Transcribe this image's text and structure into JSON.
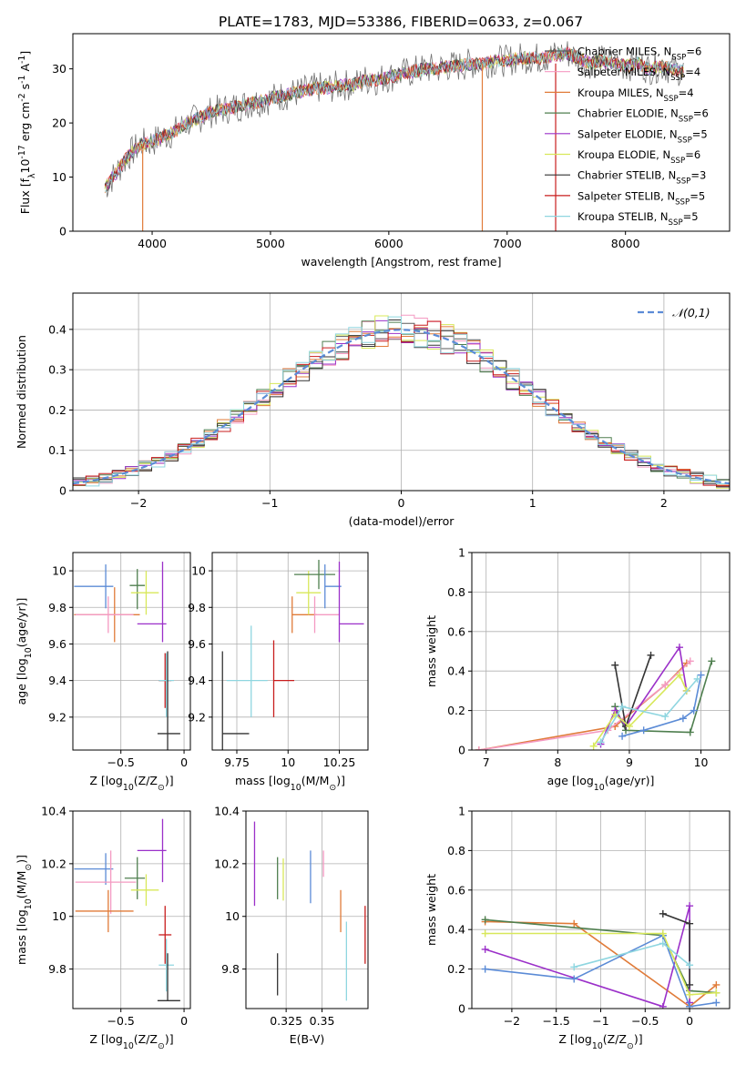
{
  "title": "PLATE=1783, MJD=53386, FIBERID=0633, z=0.067",
  "legend_entries": [
    {
      "label": "Chabrier MILES, N$_{SSP}$=6",
      "color": "#5b5b5b"
    },
    {
      "label": "Salpeter MILES, N$_{SSP}$=4",
      "color": "#f49ac2"
    },
    {
      "label": "Kroupa MILES, N$_{SSP}$=4",
      "color": "#e07b39"
    },
    {
      "label": "Chabrier ELODIE, N$_{SSP}$=6",
      "color": "#4f7f4f"
    },
    {
      "label": "Salpeter ELODIE, N$_{SSP}$=5",
      "color": "#9b30c9"
    },
    {
      "label": "Kroupa ELODIE, N$_{SSP}$=6",
      "color": "#d8e85a"
    },
    {
      "label": "Chabrier STELIB, N$_{SSP}$=3",
      "color": "#333333"
    },
    {
      "label": "Salpeter STELIB, N$_{SSP}$=5",
      "color": "#c81d1d"
    },
    {
      "label": "Kroupa STELIB, N$_{SSP}$=5",
      "color": "#8fd6e0"
    }
  ],
  "chart_data": [
    {
      "id": "spectrum",
      "type": "line",
      "xlabel": "wavelength [Angstrom, rest frame]",
      "ylabel": "Flux [f$_\\lambda$10$^{-17}$ erg cm$^{-2}$ s$^{-1}$ A$^{-1}$]",
      "xlim": [
        3330,
        8880
      ],
      "ylim": [
        0,
        36.5
      ],
      "xticks": [
        4000,
        5000,
        6000,
        7000,
        8000
      ],
      "yticks": [
        0,
        10,
        20,
        30
      ],
      "grid": false,
      "legend": "right",
      "series": [
        {
          "name": "spectrum",
          "x": [
            3600,
            3700,
            3800,
            3900,
            4000,
            4100,
            4200,
            4300,
            4400,
            4500,
            4600,
            4700,
            4800,
            4900,
            5000,
            5100,
            5200,
            5300,
            5400,
            5500,
            5600,
            5700,
            5800,
            5900,
            6000,
            6100,
            6200,
            6300,
            6400,
            6500,
            6600,
            6700,
            6800,
            6900,
            7000,
            7100,
            7200,
            7300,
            7400,
            7500,
            7600,
            7700,
            7800,
            7900,
            8000,
            8100,
            8200,
            8300,
            8400,
            8500
          ],
          "y": [
            8,
            11,
            14,
            16,
            16.5,
            17.5,
            18.5,
            20,
            21,
            22,
            22.5,
            23,
            23.5,
            24,
            24.5,
            25,
            25.5,
            26,
            26.5,
            26.5,
            27,
            27,
            28,
            28,
            28.5,
            29,
            29.5,
            30,
            30,
            30.5,
            30.5,
            31,
            31,
            31.5,
            31.5,
            32,
            32,
            32,
            32.5,
            33,
            32,
            31,
            31.5,
            31,
            30.5,
            31,
            30,
            30.5,
            30,
            29.5
          ]
        }
      ]
    },
    {
      "id": "residuals",
      "type": "bar",
      "xlabel": "(data-model)/error",
      "ylabel": "Normed distribution",
      "xlim": [
        -2.5,
        2.5
      ],
      "ylim": [
        0,
        0.49
      ],
      "xticks": [
        -2,
        -1,
        0,
        1,
        2
      ],
      "yticks": [
        0,
        0.1,
        0.2,
        0.3,
        0.4
      ],
      "grid": true,
      "legend": "top-right",
      "series": [
        {
          "name": "$\\mathcal{N}(0,1)$",
          "type": "line",
          "style": "dashed"
        }
      ]
    },
    {
      "id": "age_vs_Z",
      "type": "scatter",
      "xlabel": "Z [log$_{10}$(Z/Z$_\\odot$)]",
      "ylabel": "age  [log$_{10}$(age/yr)]",
      "xlim": [
        -0.88,
        0.05
      ],
      "ylim": [
        9.02,
        10.1
      ],
      "xticks": [
        -0.5,
        0.0
      ],
      "yticks": [
        9.2,
        9.4,
        9.6,
        9.8,
        10.0
      ],
      "grid": true,
      "points": [
        {
          "x": -0.62,
          "y": 9.915,
          "xerr": [
            0.25,
            0.06
          ],
          "yerr": [
            0.12,
            0.12
          ],
          "color": "#5b8bd6"
        },
        {
          "x": -0.55,
          "y": 9.76,
          "xerr": [
            0.32,
            0.2
          ],
          "yerr": [
            0.15,
            0.15
          ],
          "color": "#e07b39"
        },
        {
          "x": -0.6,
          "y": 9.76,
          "xerr": [
            0.26,
            0.2
          ],
          "yerr": [
            0.1,
            0.1
          ],
          "color": "#f49ac2"
        },
        {
          "x": -0.37,
          "y": 9.92,
          "xerr": [
            0.06,
            0.06
          ],
          "yerr": [
            0.13,
            0.09
          ],
          "color": "#4f7f4f"
        },
        {
          "x": -0.3,
          "y": 9.88,
          "xerr": [
            0.12,
            0.1
          ],
          "yerr": [
            0.12,
            0.12
          ],
          "color": "#d8e85a"
        },
        {
          "x": -0.17,
          "y": 9.71,
          "xerr": [
            0.2,
            0.03
          ],
          "yerr": [
            0.1,
            0.34
          ],
          "color": "#9b30c9"
        },
        {
          "x": -0.15,
          "y": 9.4,
          "xerr": [
            0.05,
            0.05
          ],
          "yerr": [
            0.15,
            0.15
          ],
          "color": "#c81d1d"
        },
        {
          "x": -0.14,
          "y": 9.4,
          "xerr": [
            0.06,
            0.06
          ],
          "yerr": [
            0.2,
            0.15
          ],
          "color": "#8fd6e0"
        },
        {
          "x": -0.13,
          "y": 9.11,
          "xerr": [
            0.08,
            0.1
          ],
          "yerr": [
            0.09,
            0.45
          ],
          "color": "#333333"
        }
      ]
    },
    {
      "id": "age_vs_mass",
      "type": "scatter",
      "xlabel": "mass [log$_{10}$(M/M$_\\odot$)]",
      "ylabel": "",
      "xlim": [
        9.63,
        10.39
      ],
      "ylim": [
        9.02,
        10.1
      ],
      "xticks": [
        9.75,
        10.0,
        10.25
      ],
      "yticks": [
        9.2,
        9.4,
        9.6,
        9.8,
        10.0
      ],
      "grid": true,
      "points": [
        {
          "x": 9.68,
          "y": 9.11,
          "xerr": [
            0.0,
            0.13
          ],
          "yerr": [
            0.09,
            0.45
          ],
          "color": "#333333"
        },
        {
          "x": 9.82,
          "y": 9.4,
          "xerr": [
            0.12,
            0.08
          ],
          "yerr": [
            0.2,
            0.3
          ],
          "color": "#8fd6e0"
        },
        {
          "x": 9.93,
          "y": 9.4,
          "xerr": [
            0.0,
            0.1
          ],
          "yerr": [
            0.2,
            0.22
          ],
          "color": "#c81d1d"
        },
        {
          "x": 10.02,
          "y": 9.76,
          "xerr": [
            0.0,
            0.12
          ],
          "yerr": [
            0.1,
            0.1
          ],
          "color": "#e07b39"
        },
        {
          "x": 10.13,
          "y": 9.76,
          "xerr": [
            0.0,
            0.12
          ],
          "yerr": [
            0.1,
            0.1
          ],
          "color": "#f49ac2"
        },
        {
          "x": 10.1,
          "y": 9.88,
          "xerr": [
            0.06,
            0.06
          ],
          "yerr": [
            0.12,
            0.12
          ],
          "color": "#d8e85a"
        },
        {
          "x": 10.15,
          "y": 9.98,
          "xerr": [
            0.12,
            0.08
          ],
          "yerr": [
            0.08,
            0.08
          ],
          "color": "#4f7f4f"
        },
        {
          "x": 10.18,
          "y": 9.915,
          "xerr": [
            0.0,
            0.08
          ],
          "yerr": [
            0.12,
            0.12
          ],
          "color": "#5b8bd6"
        },
        {
          "x": 10.25,
          "y": 9.71,
          "xerr": [
            0.0,
            0.12
          ],
          "yerr": [
            0.1,
            0.34
          ],
          "color": "#9b30c9"
        }
      ]
    },
    {
      "id": "mass_weight_vs_age",
      "type": "line",
      "xlabel": "age  [log$_{10}$(age/yr)]",
      "ylabel": "mass weight",
      "xlim": [
        6.8,
        10.4
      ],
      "ylim": [
        0,
        1.0
      ],
      "xticks": [
        7,
        8,
        9,
        10
      ],
      "yticks": [
        0.0,
        0.2,
        0.4,
        0.6,
        0.8,
        1.0
      ],
      "grid": true,
      "series": [
        {
          "color": "#e07b39",
          "x": [
            6.9,
            8.8,
            9.5,
            9.8
          ],
          "y": [
            0.0,
            0.12,
            0.33,
            0.44
          ]
        },
        {
          "color": "#f49ac2",
          "x": [
            6.9,
            8.7,
            9.5,
            9.85
          ],
          "y": [
            0.0,
            0.1,
            0.33,
            0.45
          ]
        },
        {
          "color": "#4f7f4f",
          "x": [
            8.8,
            8.95,
            9.85,
            10.15
          ],
          "y": [
            0.22,
            0.1,
            0.09,
            0.45
          ]
        },
        {
          "color": "#9b30c9",
          "x": [
            8.6,
            8.8,
            8.95,
            9.7,
            9.8
          ],
          "y": [
            0.03,
            0.2,
            0.12,
            0.52,
            0.3
          ]
        },
        {
          "color": "#5b8bd6",
          "x": [
            8.9,
            9.2,
            9.75,
            9.9,
            10.0
          ],
          "y": [
            0.07,
            0.1,
            0.16,
            0.2,
            0.38
          ]
        },
        {
          "color": "#333333",
          "x": [
            8.8,
            8.95,
            9.3
          ],
          "y": [
            0.43,
            0.12,
            0.48
          ]
        },
        {
          "color": "#d8e85a",
          "x": [
            8.5,
            8.8,
            9.0,
            9.7,
            9.8
          ],
          "y": [
            0.02,
            0.18,
            0.12,
            0.38,
            0.3
          ]
        },
        {
          "color": "#8fd6e0",
          "x": [
            8.6,
            8.9,
            9.5,
            9.95
          ],
          "y": [
            0.04,
            0.22,
            0.17,
            0.36
          ]
        }
      ]
    },
    {
      "id": "mass_vs_Z",
      "type": "scatter",
      "xlabel": "Z [log$_{10}$(Z/Z$_\\odot$)]",
      "ylabel": "mass [log$_{10}$(M/M$_\\odot$)]",
      "xlim": [
        -0.88,
        0.05
      ],
      "ylim": [
        9.65,
        10.4
      ],
      "xticks": [
        -0.5,
        0.0
      ],
      "yticks": [
        9.8,
        10.0,
        10.2,
        10.4
      ],
      "grid": true,
      "points": [
        {
          "x": -0.62,
          "y": 10.18,
          "xerr": [
            0.25,
            0.06
          ],
          "yerr": [
            0.06,
            0.06
          ],
          "color": "#5b8bd6"
        },
        {
          "x": -0.58,
          "y": 10.13,
          "xerr": [
            0.28,
            0.2
          ],
          "yerr": [
            0.12,
            0.12
          ],
          "color": "#f49ac2"
        },
        {
          "x": -0.6,
          "y": 10.02,
          "xerr": [
            0.26,
            0.2
          ],
          "yerr": [
            0.08,
            0.08
          ],
          "color": "#e07b39"
        },
        {
          "x": -0.37,
          "y": 10.145,
          "xerr": [
            0.1,
            0.06
          ],
          "yerr": [
            0.08,
            0.08
          ],
          "color": "#4f7f4f"
        },
        {
          "x": -0.3,
          "y": 10.1,
          "xerr": [
            0.12,
            0.1
          ],
          "yerr": [
            0.06,
            0.06
          ],
          "color": "#d8e85a"
        },
        {
          "x": -0.17,
          "y": 10.25,
          "xerr": [
            0.2,
            0.03
          ],
          "yerr": [
            0.12,
            0.12
          ],
          "color": "#9b30c9"
        },
        {
          "x": -0.15,
          "y": 9.93,
          "xerr": [
            0.05,
            0.05
          ],
          "yerr": [
            0.11,
            0.11
          ],
          "color": "#c81d1d"
        },
        {
          "x": -0.14,
          "y": 9.815,
          "xerr": [
            0.06,
            0.06
          ],
          "yerr": [
            0.1,
            0.1
          ],
          "color": "#8fd6e0"
        },
        {
          "x": -0.13,
          "y": 9.68,
          "xerr": [
            0.08,
            0.1
          ],
          "yerr": [
            0.0,
            0.18
          ],
          "color": "#333333"
        }
      ]
    },
    {
      "id": "mass_vs_ebv",
      "type": "scatter",
      "xlabel": "E(B-V)",
      "ylabel": "",
      "xlim": [
        0.297,
        0.382
      ],
      "ylim": [
        9.65,
        10.4
      ],
      "xticks": [
        0.325,
        0.35
      ],
      "yticks": [
        9.8,
        10.0,
        10.2,
        10.4
      ],
      "grid": true,
      "points": [
        {
          "x": 0.303,
          "y": 10.2,
          "xerr": [
            0,
            0
          ],
          "yerr": [
            0.16,
            0.16
          ],
          "color": "#9b30c9"
        },
        {
          "x": 0.319,
          "y": 9.78,
          "xerr": [
            0,
            0
          ],
          "yerr": [
            0.08,
            0.08
          ],
          "color": "#333333"
        },
        {
          "x": 0.319,
          "y": 10.145,
          "xerr": [
            0,
            0
          ],
          "yerr": [
            0.08,
            0.08
          ],
          "color": "#4f7f4f"
        },
        {
          "x": 0.323,
          "y": 10.14,
          "xerr": [
            0,
            0
          ],
          "yerr": [
            0.08,
            0.08
          ],
          "color": "#d8e85a"
        },
        {
          "x": 0.342,
          "y": 10.15,
          "xerr": [
            0,
            0
          ],
          "yerr": [
            0.1,
            0.1
          ],
          "color": "#5b8bd6"
        },
        {
          "x": 0.351,
          "y": 10.2,
          "xerr": [
            0,
            0
          ],
          "yerr": [
            0.05,
            0.05
          ],
          "color": "#f49ac2"
        },
        {
          "x": 0.363,
          "y": 10.02,
          "xerr": [
            0,
            0
          ],
          "yerr": [
            0.08,
            0.08
          ],
          "color": "#e07b39"
        },
        {
          "x": 0.367,
          "y": 9.83,
          "xerr": [
            0,
            0
          ],
          "yerr": [
            0.15,
            0.15
          ],
          "color": "#8fd6e0"
        },
        {
          "x": 0.38,
          "y": 9.93,
          "xerr": [
            0,
            0
          ],
          "yerr": [
            0.11,
            0.11
          ],
          "color": "#c81d1d"
        }
      ]
    },
    {
      "id": "mass_weight_vs_Z",
      "type": "line",
      "xlabel": "Z [log$_{10}$(Z/Z$_\\odot$)]",
      "ylabel": "mass weight",
      "xlim": [
        -2.45,
        0.45
      ],
      "ylim": [
        0,
        1.0
      ],
      "xticks": [
        -2.0,
        -1.5,
        -1.0,
        -0.5,
        0.0
      ],
      "yticks": [
        0.0,
        0.2,
        0.4,
        0.6,
        0.8,
        1.0
      ],
      "grid": true,
      "series": [
        {
          "color": "#e07b39",
          "x": [
            -2.3,
            -1.3,
            0.0,
            0.3
          ],
          "y": [
            0.44,
            0.43,
            0.01,
            0.12
          ]
        },
        {
          "color": "#4f7f4f",
          "x": [
            -2.3,
            -0.3,
            0.0,
            0.3
          ],
          "y": [
            0.45,
            0.37,
            0.09,
            0.08
          ]
        },
        {
          "color": "#9b30c9",
          "x": [
            -2.3,
            -0.3,
            0.0,
            0.0
          ],
          "y": [
            0.3,
            0.01,
            0.52,
            0.03
          ]
        },
        {
          "color": "#5b8bd6",
          "x": [
            -2.3,
            -1.3,
            -0.3,
            0.0,
            0.3
          ],
          "y": [
            0.2,
            0.15,
            0.37,
            0.01,
            0.03
          ]
        },
        {
          "color": "#d8e85a",
          "x": [
            -2.3,
            -0.3,
            0.0,
            0.3
          ],
          "y": [
            0.38,
            0.38,
            0.07,
            0.08
          ]
        },
        {
          "color": "#333333",
          "x": [
            -0.3,
            0.0,
            0.0
          ],
          "y": [
            0.48,
            0.43,
            0.12
          ]
        },
        {
          "color": "#8fd6e0",
          "x": [
            -1.3,
            -0.3,
            0.0
          ],
          "y": [
            0.21,
            0.33,
            0.22
          ]
        }
      ]
    }
  ]
}
